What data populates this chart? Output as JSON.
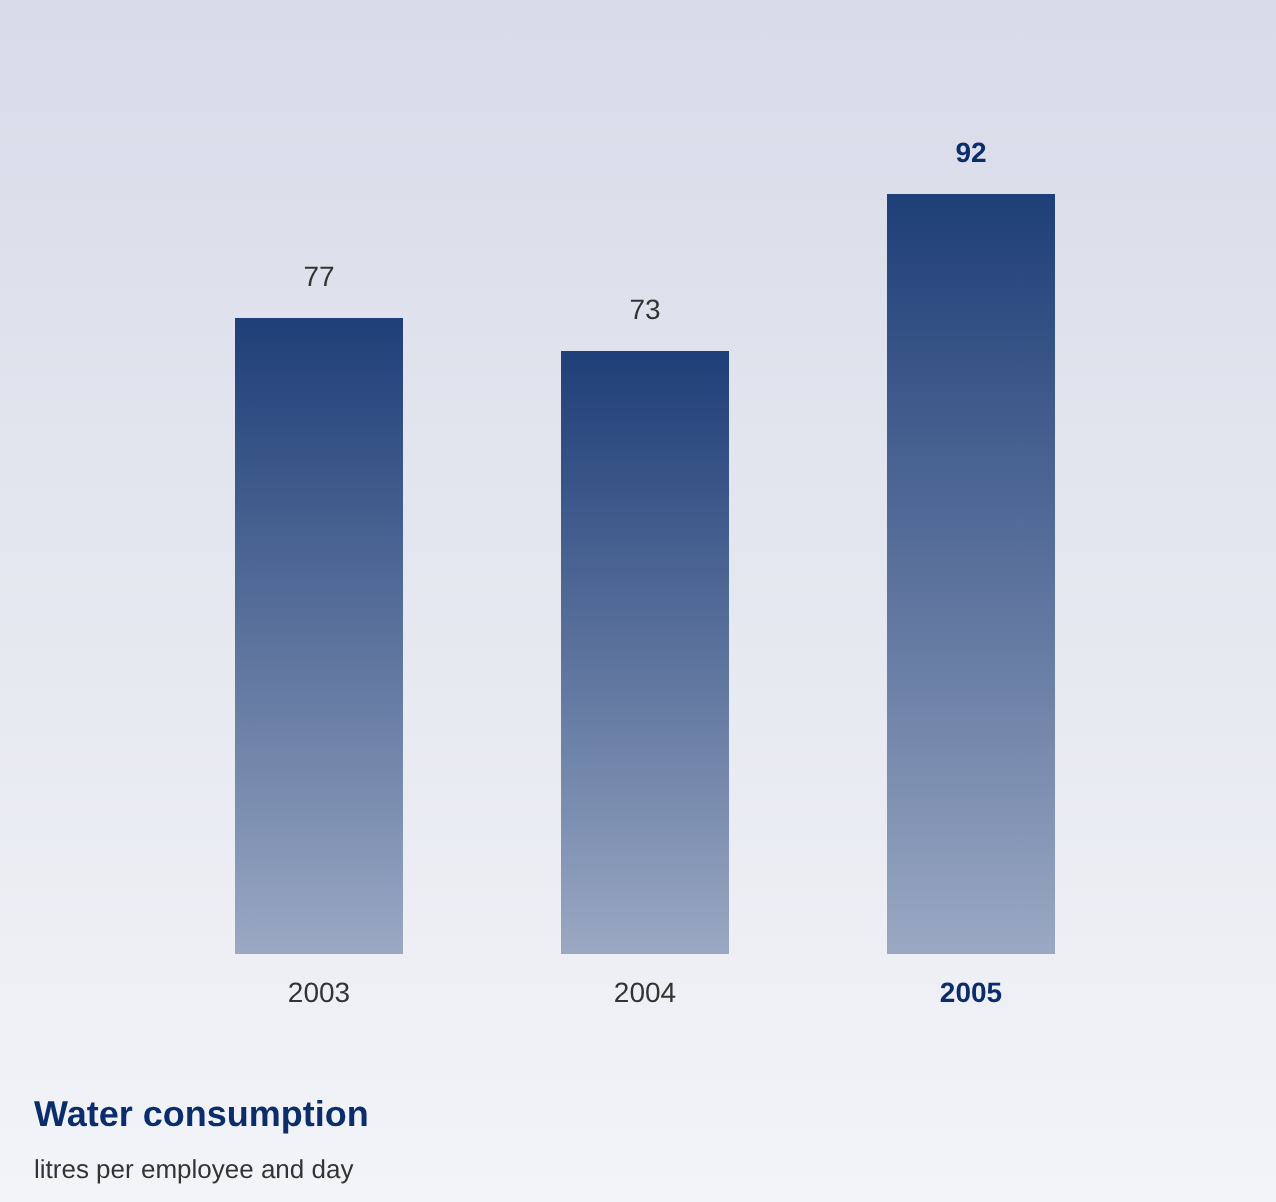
{
  "chart_data": {
    "type": "bar",
    "title": "Water consumption",
    "subtitle": "litres per employee and day",
    "categories": [
      "2003",
      "2004",
      "2005"
    ],
    "values": [
      77,
      73,
      92
    ],
    "color": "#1f3f78",
    "data_labels": true
  }
}
